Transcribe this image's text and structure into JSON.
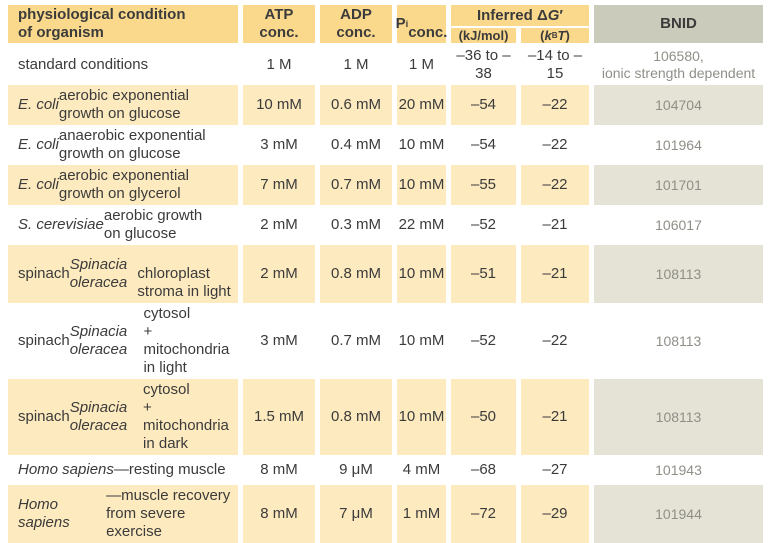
{
  "colors": {
    "header_yellow": "#fad98c",
    "row_yellow": "#fdeabf",
    "header_grey": "#cbcbbc",
    "row_grey": "#e4e3d6",
    "text_dark": "#3b3b3b",
    "bnid_text_grey": "#8f8f88"
  },
  "table": {
    "header": {
      "condition": "physiological condition\nof organism",
      "atp": "ATP\nconc.",
      "adp": "ADP\nconc.",
      "pi": [
        {
          "t": "P"
        },
        {
          "t": "i",
          "sub": true
        },
        {
          "t": "\nconc."
        }
      ],
      "inferred": [
        {
          "t": "Inferred Δ"
        },
        {
          "t": "G",
          "i": true
        },
        {
          "t": "′"
        }
      ],
      "kj": "(kJ/mol)",
      "kbt": [
        {
          "t": "("
        },
        {
          "t": "k",
          "i": true
        },
        {
          "t": "B",
          "sub": true
        },
        {
          "t": "T",
          "i": true
        },
        {
          "t": ")"
        }
      ],
      "bnid": "BNID"
    },
    "rows": [
      {
        "condition": [
          {
            "t": "standard conditions"
          }
        ],
        "atp": "1 M",
        "adp": "1 M",
        "pi": "1 M",
        "kj": "–36 to –38",
        "kbt": "–14 to –15",
        "bnid": "106580,\nionic strength dependent",
        "shade": false
      },
      {
        "condition": [
          {
            "t": "E. coli",
            "i": true
          },
          {
            "t": " aerobic exponential\ngrowth on glucose"
          }
        ],
        "atp": "10 mM",
        "adp": "0.6 mM",
        "pi": "20 mM",
        "kj": "–54",
        "kbt": "–22",
        "bnid": "104704",
        "shade": true
      },
      {
        "condition": [
          {
            "t": "E. coli",
            "i": true
          },
          {
            "t": " anaerobic exponential\ngrowth on glucose"
          }
        ],
        "atp": "3 mM",
        "adp": "0.4 mM",
        "pi": "10 mM",
        "kj": "–54",
        "kbt": "–22",
        "bnid": "101964",
        "shade": false
      },
      {
        "condition": [
          {
            "t": "E. coli",
            "i": true
          },
          {
            "t": " aerobic exponential\ngrowth on glycerol"
          }
        ],
        "atp": "7 mM",
        "adp": "0.7 mM",
        "pi": "10 mM",
        "kj": "–55",
        "kbt": "–22",
        "bnid": "101701",
        "shade": true
      },
      {
        "condition": [
          {
            "t": "S. cerevisiae",
            "i": true
          },
          {
            "t": " aerobic growth\non glucose"
          }
        ],
        "atp": "2 mM",
        "adp": "0.3 mM",
        "pi": "22 mM",
        "kj": "–52",
        "kbt": "–21",
        "bnid": "106017",
        "shade": false
      },
      {
        "condition": [
          {
            "t": "spinach "
          },
          {
            "t": "Spinacia oleracea",
            "i": true
          },
          {
            "t": "\nchloroplast stroma in light"
          }
        ],
        "atp": "2 mM",
        "adp": "0.8 mM",
        "pi": "10 mM",
        "kj": "–51",
        "kbt": "–21",
        "bnid": "108113",
        "shade": true
      },
      {
        "condition": [
          {
            "t": "spinach "
          },
          {
            "t": "Spinacia oleracea",
            "i": true
          },
          {
            "t": " cytosol\n+ mitochondria in light"
          }
        ],
        "atp": "3 mM",
        "adp": "0.7 mM",
        "pi": "10 mM",
        "kj": "–52",
        "kbt": "–22",
        "bnid": "108113",
        "shade": false
      },
      {
        "condition": [
          {
            "t": "spinach "
          },
          {
            "t": "Spinacia oleracea",
            "i": true
          },
          {
            "t": " cytosol\n+ mitochondria in dark"
          }
        ],
        "atp": "1.5 mM",
        "adp": "0.8 mM",
        "pi": "10 mM",
        "kj": "–50",
        "kbt": "–21",
        "bnid": "108113",
        "shade": true
      },
      {
        "condition": [
          {
            "t": "Homo sapiens",
            "i": true
          },
          {
            "t": "—resting muscle"
          }
        ],
        "atp": "8 mM",
        "adp": "9 μM",
        "pi": "4 mM",
        "kj": "–68",
        "kbt": "–27",
        "bnid": "101943",
        "shade": false,
        "compact": true
      },
      {
        "condition": [
          {
            "t": "Homo sapiens",
            "i": true
          },
          {
            "t": "—muscle recovery\nfrom severe exercise"
          }
        ],
        "atp": "8 mM",
        "adp": "7 μM",
        "pi": "1 mM",
        "kj": "–72",
        "kbt": "–29",
        "bnid": "101944",
        "shade": true
      }
    ]
  }
}
